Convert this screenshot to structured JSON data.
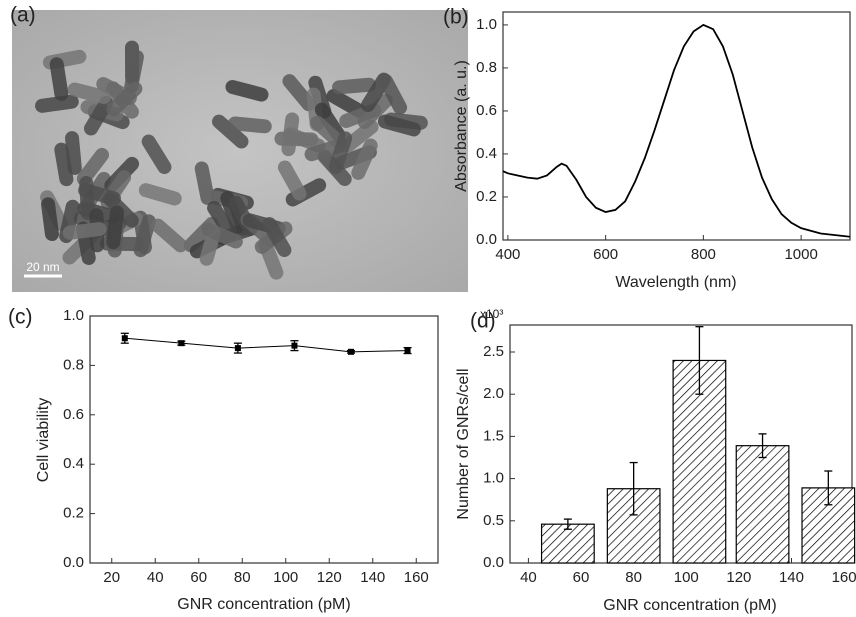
{
  "image": {
    "label": "(a)",
    "scale_bar": "20 nm"
  },
  "chart_data": [
    {
      "type": "line",
      "label": "(b)",
      "x_label": "Wavelength (nm)",
      "y_label": "Absorbance (a. u.)",
      "color": "#000000",
      "x": [
        390,
        400,
        420,
        440,
        460,
        480,
        500,
        510,
        520,
        540,
        560,
        580,
        600,
        620,
        640,
        660,
        680,
        700,
        720,
        740,
        760,
        780,
        800,
        820,
        840,
        860,
        880,
        900,
        920,
        940,
        960,
        980,
        1000,
        1040,
        1100
      ],
      "values": [
        0.32,
        0.31,
        0.3,
        0.29,
        0.285,
        0.3,
        0.34,
        0.355,
        0.345,
        0.28,
        0.2,
        0.15,
        0.13,
        0.14,
        0.18,
        0.27,
        0.38,
        0.51,
        0.65,
        0.79,
        0.9,
        0.97,
        1.0,
        0.98,
        0.9,
        0.77,
        0.6,
        0.43,
        0.29,
        0.19,
        0.12,
        0.08,
        0.055,
        0.03,
        0.015
      ],
      "xlim": [
        390,
        1100
      ],
      "ylim": [
        0,
        1.06
      ],
      "xticks": [
        400,
        600,
        800,
        1000
      ],
      "yticks": [
        {
          "value": 0,
          "label": "0.0"
        },
        0.2,
        0.4,
        0.6,
        0.8,
        {
          "value": 1,
          "label": "1.0"
        }
      ]
    },
    {
      "type": "line",
      "label": "(c)",
      "x_label": "GNR concentration (pM)",
      "y_label": "Cell viability",
      "color": "#000000",
      "markers": true,
      "x": [
        26,
        52,
        78,
        104,
        130,
        156
      ],
      "values": [
        0.91,
        0.89,
        0.87,
        0.88,
        0.855,
        0.86
      ],
      "errors": [
        0.02,
        0.008,
        0.02,
        0.02,
        0.005,
        0.012
      ],
      "xlim": [
        10,
        170
      ],
      "ylim": [
        0,
        1.0
      ],
      "xticks": [
        20,
        40,
        60,
        80,
        100,
        120,
        140,
        160
      ],
      "yticks": [
        {
          "value": 0,
          "label": "0.0"
        },
        0.2,
        0.4,
        0.6,
        0.8,
        {
          "value": 1,
          "label": "1.0"
        }
      ]
    },
    {
      "type": "bar",
      "label": "(d)",
      "x_label": "GNR concentration (pM)",
      "y_label": "Number of GNRs/cell",
      "y_multiplier": "x10³",
      "color": "#000000",
      "x": [
        55,
        80,
        105,
        129,
        154
      ],
      "values": [
        0.46,
        0.88,
        2.4,
        1.39,
        0.89
      ],
      "errors": [
        0.06,
        0.31,
        0.4,
        0.14,
        0.2
      ],
      "xlim": [
        33,
        163
      ],
      "ylim": [
        0,
        2.82
      ],
      "xticks": [
        40,
        60,
        80,
        100,
        120,
        140,
        160
      ],
      "yticks": [
        {
          "value": 0,
          "label": "0.0"
        },
        0.5,
        {
          "value": 1,
          "label": "1.0"
        },
        1.5,
        {
          "value": 2,
          "label": "2.0"
        },
        2.5
      ]
    }
  ]
}
